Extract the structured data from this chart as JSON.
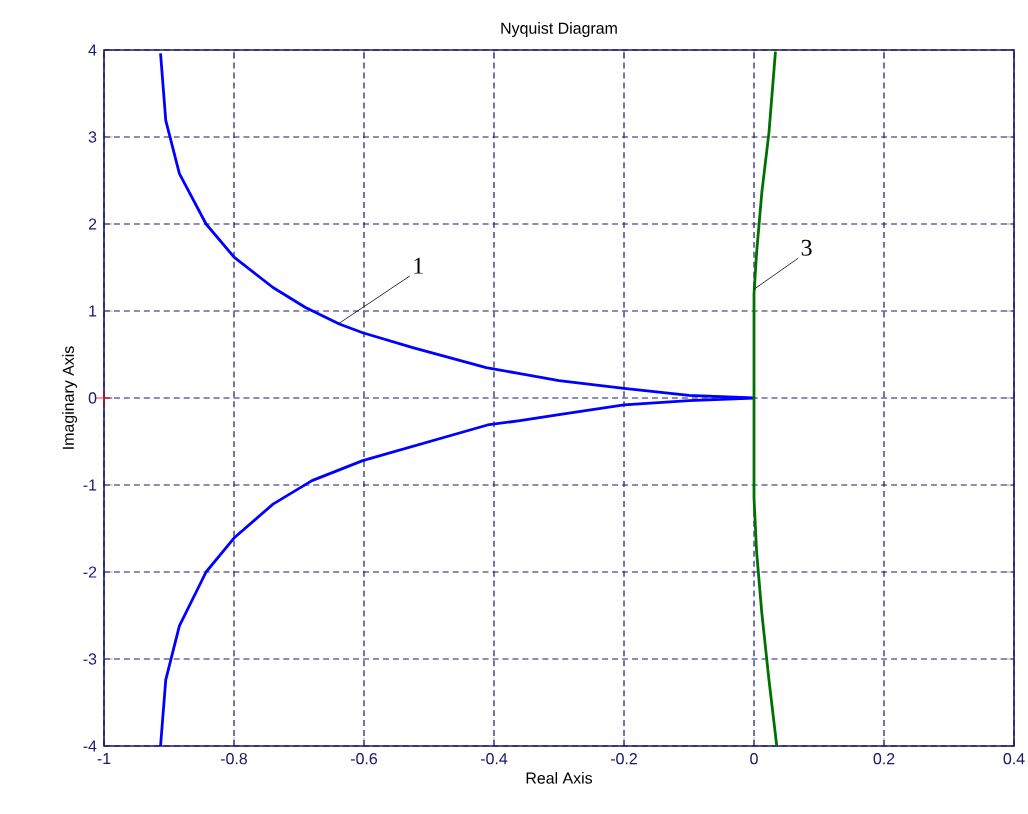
{
  "chart_data": {
    "type": "line",
    "title": "Nyquist Diagram",
    "xlabel": "Real Axis",
    "ylabel": "Imaginary Axis",
    "xlim": [
      -1,
      0.4
    ],
    "ylim": [
      -4,
      4
    ],
    "xticks": [
      -1,
      -0.8,
      -0.6,
      -0.4,
      -0.2,
      0,
      0.2,
      0.4
    ],
    "yticks": [
      -4,
      -3,
      -2,
      -1,
      0,
      1,
      2,
      3,
      4
    ],
    "grid": true,
    "marker": "none",
    "line_style": "solid",
    "series": [
      {
        "color": "#0000ff",
        "x": [
          -0.913,
          -0.905,
          -0.884,
          -0.843,
          -0.8,
          -0.74,
          -0.69,
          -0.638,
          -0.602,
          -0.525,
          -0.412,
          -0.36,
          -0.3,
          -0.2,
          -0.1,
          0,
          -0.1,
          -0.2,
          -0.3,
          -0.36,
          -0.41,
          -0.602,
          -0.68,
          -0.74,
          -0.8,
          -0.843,
          -0.884,
          -0.905,
          -0.913
        ],
        "values": [
          3.96,
          3.19,
          2.58,
          2.0,
          1.62,
          1.27,
          1.04,
          0.85,
          0.75,
          0.58,
          0.35,
          0.28,
          0.2,
          0.11,
          0.03,
          0,
          -0.03,
          -0.08,
          -0.19,
          -0.26,
          -0.31,
          -0.72,
          -0.95,
          -1.22,
          -1.61,
          -2.0,
          -2.62,
          -3.24,
          -4.0
        ]
      },
      {
        "color": "#007000",
        "x": [
          0.033,
          0.023,
          0.012,
          0.004,
          0,
          0,
          0.004,
          0.012,
          0.023,
          0.035
        ],
        "values": [
          3.98,
          3.05,
          2.36,
          1.67,
          1.2,
          -1.15,
          -1.77,
          -2.47,
          -3.24,
          -4.0
        ]
      },
      {
        "type": "scatter",
        "color": "#ff0000",
        "marker": "cross",
        "x": [
          -1
        ],
        "values": [
          0
        ]
      }
    ],
    "annotations": [
      {
        "text": "1",
        "x": -0.64,
        "y": 0.85
      },
      {
        "text": "3",
        "x": 0,
        "y": 1.25
      }
    ]
  }
}
